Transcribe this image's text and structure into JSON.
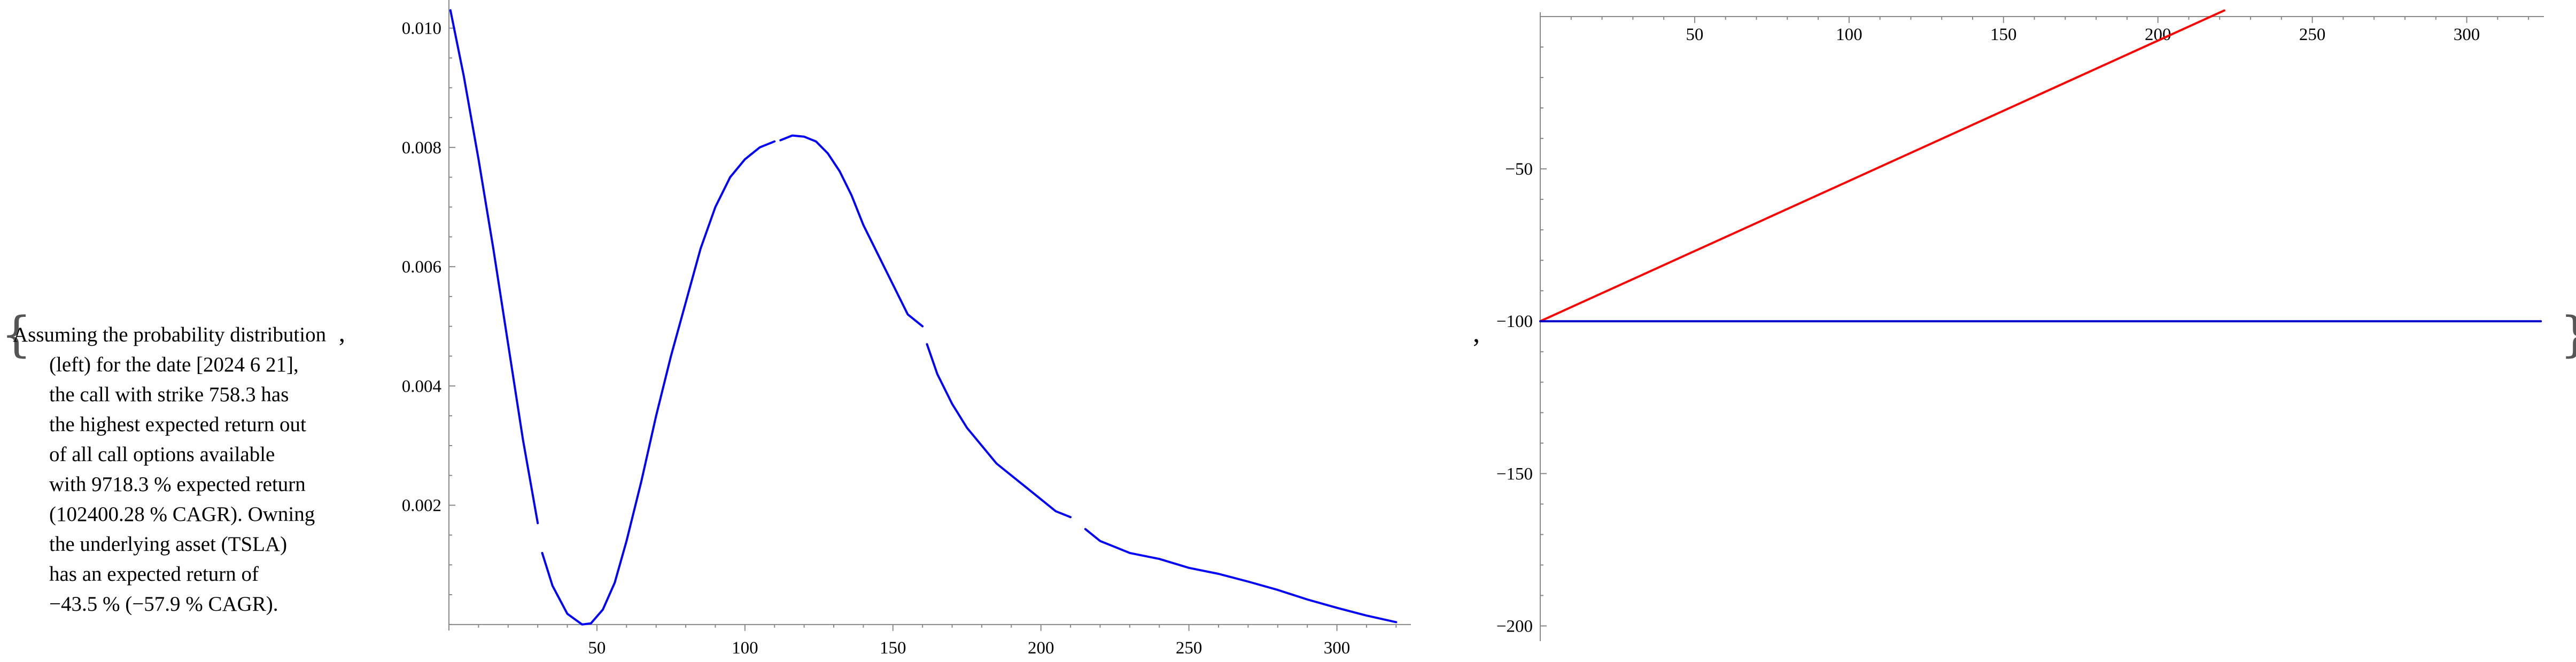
{
  "open_brace": "{",
  "close_brace": "}",
  "separator_comma": ",",
  "description": {
    "lines": [
      "Assuming the probability distribution",
      "(left) for the date [2024 6 21],",
      "the call with strike 758.3 has",
      "the highest expected return out",
      "of all call options available",
      "with 9718.3 % expected return",
      "(102400.28 % CAGR). Owning",
      "the underlying asset (TSLA)",
      "has an expected return of",
      "−43.5 % (−57.9 % CAGR)."
    ],
    "trailing_comma": ","
  },
  "chart_data": [
    {
      "type": "line",
      "title": "",
      "xlabel": "",
      "ylabel": "",
      "xlim": [
        0,
        325
      ],
      "ylim": [
        -0.0001,
        0.0104
      ],
      "x_ticks": [
        50,
        100,
        150,
        200,
        250,
        300
      ],
      "y_ticks": [
        0.002,
        0.004,
        0.006,
        0.008,
        0.01
      ],
      "y_tick_labels": [
        "0.002",
        "0.004",
        "0.006",
        "0.008",
        "0.010"
      ],
      "series": [
        {
          "color": "#0000ff",
          "segments": [
            [
              [
                0.5,
                0.0103
              ],
              [
                5,
                0.0092
              ],
              [
                10,
                0.0078
              ],
              [
                15,
                0.0063
              ],
              [
                20,
                0.0047
              ],
              [
                25,
                0.0031
              ],
              [
                30,
                0.0017
              ]
            ],
            [
              [
                31.5,
                0.0012
              ],
              [
                35,
                0.00065
              ],
              [
                40,
                0.00018
              ],
              [
                45,
                0.0
              ],
              [
                48,
                2e-05
              ],
              [
                52,
                0.00025
              ],
              [
                56,
                0.0007
              ],
              [
                60,
                0.0014
              ],
              [
                65,
                0.0024
              ],
              [
                70,
                0.0035
              ],
              [
                75,
                0.0045
              ],
              [
                80,
                0.0054
              ],
              [
                85,
                0.0063
              ],
              [
                90,
                0.007
              ],
              [
                95,
                0.0075
              ],
              [
                100,
                0.0078
              ],
              [
                105,
                0.008
              ],
              [
                110,
                0.0081
              ]
            ],
            [
              [
                112,
                0.00812
              ],
              [
                116,
                0.0082
              ],
              [
                120,
                0.00818
              ],
              [
                124,
                0.0081
              ],
              [
                128,
                0.0079
              ],
              [
                132,
                0.0076
              ],
              [
                136,
                0.0072
              ],
              [
                140,
                0.0067
              ],
              [
                145,
                0.0062
              ],
              [
                150,
                0.0057
              ],
              [
                155,
                0.0052
              ],
              [
                160,
                0.005
              ]
            ],
            [
              [
                161.5,
                0.0047
              ],
              [
                165,
                0.0042
              ],
              [
                170,
                0.0037
              ],
              [
                175,
                0.0033
              ],
              [
                180,
                0.003
              ],
              [
                185,
                0.0027
              ],
              [
                190,
                0.0025
              ],
              [
                195,
                0.0023
              ],
              [
                200,
                0.0021
              ],
              [
                205,
                0.0019
              ],
              [
                210,
                0.0018
              ]
            ],
            [
              [
                215,
                0.0016
              ],
              [
                220,
                0.0014
              ],
              [
                225,
                0.0013
              ],
              [
                230,
                0.0012
              ],
              [
                240,
                0.0011
              ],
              [
                250,
                0.00095
              ],
              [
                260,
                0.00085
              ],
              [
                270,
                0.00072
              ],
              [
                280,
                0.00058
              ],
              [
                290,
                0.00042
              ],
              [
                300,
                0.00028
              ],
              [
                310,
                0.00015
              ],
              [
                320,
                4e-05
              ]
            ]
          ]
        }
      ]
    },
    {
      "type": "line",
      "title": "",
      "xlabel": "",
      "ylabel": "",
      "xlim": [
        0,
        325
      ],
      "ylim": [
        -205,
        0
      ],
      "x_ticks": [
        50,
        100,
        150,
        200,
        250,
        300
      ],
      "y_ticks": [
        -50,
        -100,
        -150,
        -200
      ],
      "y_tick_labels": [
        "−50",
        "−100",
        "−150",
        "−200"
      ],
      "series": [
        {
          "color": "#ff0000",
          "segments": [
            [
              [
                0,
                -100
              ],
              [
                221.5,
                2
              ]
            ]
          ]
        },
        {
          "color": "#0000cc",
          "segments": [
            [
              [
                0,
                -100
              ],
              [
                324,
                -100
              ]
            ]
          ]
        }
      ]
    }
  ]
}
